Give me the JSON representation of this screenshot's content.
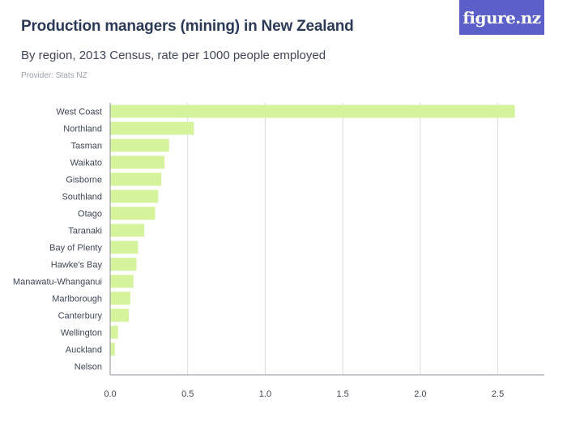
{
  "header": {
    "title": "Production managers (mining) in New Zealand",
    "subtitle": "By region, 2013 Census, rate per 1000 people employed",
    "provider": "Provider: Stats NZ",
    "logo_text": "figure.nz"
  },
  "colors": {
    "bar": "#d4f39a",
    "grid": "#d9dbe0",
    "axis": "#8a8f99",
    "logo_bg": "#5b5fc7",
    "title": "#2c3a58"
  },
  "chart_data": {
    "type": "bar",
    "orientation": "horizontal",
    "categories": [
      "West Coast",
      "Northland",
      "Tasman",
      "Waikato",
      "Gisborne",
      "Southland",
      "Otago",
      "Taranaki",
      "Bay of Plenty",
      "Hawke's Bay",
      "Manawatu-Whanganui",
      "Marlborough",
      "Canterbury",
      "Wellington",
      "Auckland",
      "Nelson"
    ],
    "values": [
      2.61,
      0.54,
      0.38,
      0.35,
      0.33,
      0.31,
      0.29,
      0.22,
      0.18,
      0.17,
      0.15,
      0.13,
      0.12,
      0.05,
      0.03,
      0.0
    ],
    "xticks": [
      0.0,
      0.5,
      1.0,
      1.5,
      2.0,
      2.5
    ],
    "xtick_labels": [
      "0.0",
      "0.5",
      "1.0",
      "1.5",
      "2.0",
      "2.5"
    ],
    "xlim": [
      0,
      2.8
    ],
    "xlabel": "",
    "ylabel": "",
    "grid": true,
    "legend": "none"
  }
}
